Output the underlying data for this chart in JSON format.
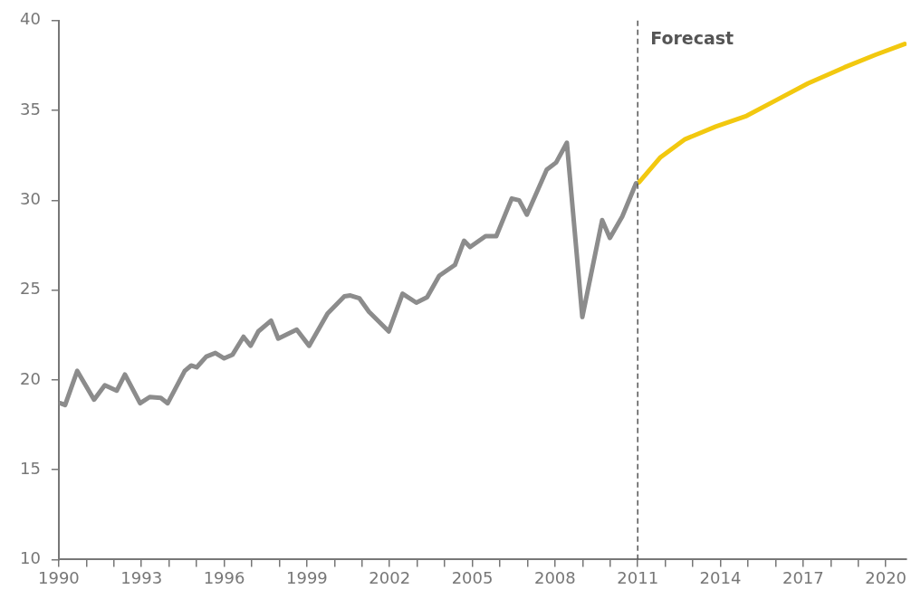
{
  "chart_data": {
    "type": "line",
    "xlim": [
      1990,
      2020.75
    ],
    "ylim": [
      10,
      40
    ],
    "yticks": [
      10,
      15,
      20,
      25,
      30,
      35,
      40
    ],
    "xticks": [
      1990,
      {
        "value": 1991,
        "label": null
      },
      {
        "value": 1992,
        "label": null
      },
      1993,
      {
        "value": 1994,
        "label": null
      },
      {
        "value": 1995,
        "label": null
      },
      1996,
      {
        "value": 1997,
        "label": null
      },
      {
        "value": 1998,
        "label": null
      },
      1999,
      {
        "value": 2000,
        "label": null
      },
      {
        "value": 2001,
        "label": null
      },
      2002,
      {
        "value": 2003,
        "label": null
      },
      {
        "value": 2004,
        "label": null
      },
      2005,
      {
        "value": 2006,
        "label": null
      },
      {
        "value": 2007,
        "label": null
      },
      2008,
      {
        "value": 2009,
        "label": null
      },
      {
        "value": 2010,
        "label": null
      },
      2011,
      {
        "value": 2012,
        "label": null
      },
      {
        "value": 2013,
        "label": null
      },
      2014,
      {
        "value": 2015,
        "label": null
      },
      {
        "value": 2016,
        "label": null
      },
      2017,
      {
        "value": 2018,
        "label": null
      },
      {
        "value": 2019,
        "label": null
      },
      2020
    ],
    "grid": false,
    "legend": false,
    "marker": "none",
    "line_style": "solid",
    "series": [
      {
        "color": "#8c8c8c",
        "x": [
          1990.06,
          1990.23,
          1990.67,
          1991.28,
          1991.67,
          1992.1,
          1992.4,
          1992.95,
          1993.3,
          1993.7,
          1993.95,
          1994.57,
          1994.8,
          1995.0,
          1995.35,
          1995.68,
          1996.0,
          1996.3,
          1996.7,
          1996.96,
          1997.24,
          1997.7,
          1997.96,
          1998.63,
          1999.08,
          1999.75,
          2000.36,
          2000.58,
          2000.9,
          2001.25,
          2001.97,
          2002.47,
          2002.97,
          2003.36,
          2003.8,
          2004.37,
          2004.7,
          2004.92,
          2005.48,
          2005.87,
          2006.43,
          2006.7,
          2006.98,
          2007.7,
          2008.04,
          2008.43,
          2008.99,
          2009.71,
          2009.99,
          2010.44,
          2010.94
        ],
        "values": [
          18.7,
          18.6,
          20.5,
          18.9,
          19.7,
          19.4,
          20.3,
          18.7,
          19.05,
          19.0,
          18.7,
          20.5,
          20.8,
          20.7,
          21.3,
          21.5,
          21.2,
          21.4,
          22.4,
          21.9,
          22.7,
          23.3,
          22.3,
          22.8,
          21.9,
          23.7,
          24.65,
          24.7,
          24.55,
          23.8,
          22.7,
          24.8,
          24.3,
          24.6,
          25.8,
          26.4,
          27.75,
          27.4,
          28.0,
          28.0,
          30.1,
          30.0,
          29.2,
          31.7,
          32.1,
          33.2,
          23.5,
          28.9,
          27.9,
          29.1,
          30.95
        ]
      },
      {
        "color": "#f2c80f",
        "x": [
          2011.05,
          2011.83,
          2012.72,
          2013.83,
          2014.95,
          2016.06,
          2017.17,
          2018.5,
          2019.63,
          2020.68
        ],
        "values": [
          31.0,
          32.4,
          33.4,
          34.1,
          34.7,
          35.6,
          36.5,
          37.4,
          38.1,
          38.7
        ]
      }
    ],
    "ref_lines": [
      {
        "axis": "x",
        "value": 2011,
        "label": "Forecast",
        "color": "#555555",
        "line_style": "dashed"
      }
    ]
  }
}
